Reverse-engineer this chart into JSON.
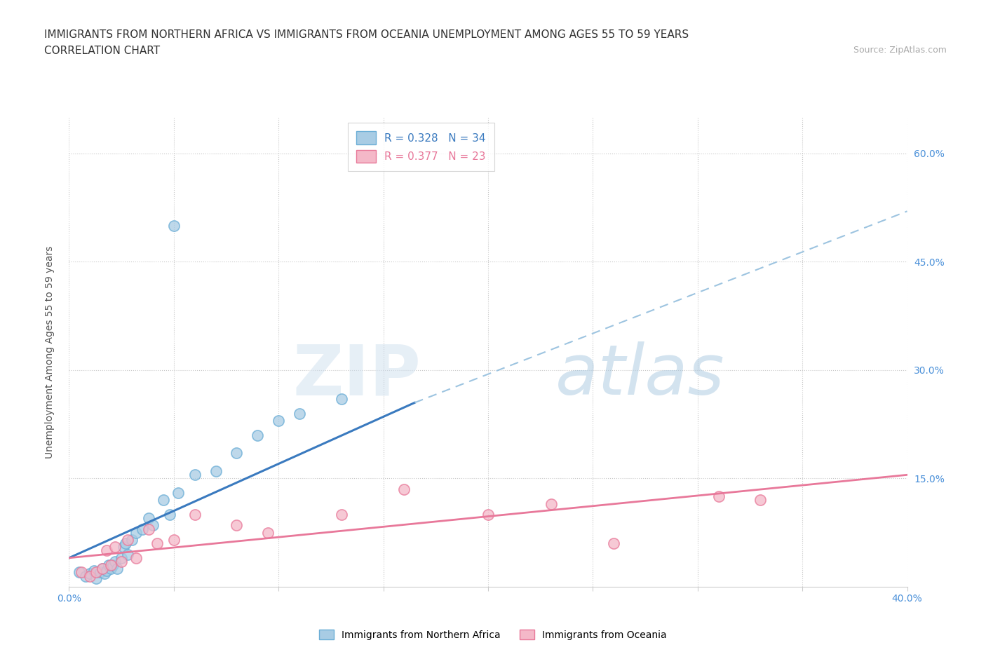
{
  "title_line1": "IMMIGRANTS FROM NORTHERN AFRICA VS IMMIGRANTS FROM OCEANIA UNEMPLOYMENT AMONG AGES 55 TO 59 YEARS",
  "title_line2": "CORRELATION CHART",
  "source_text": "Source: ZipAtlas.com",
  "ylabel": "Unemployment Among Ages 55 to 59 years",
  "xlim": [
    0.0,
    0.4
  ],
  "ylim": [
    0.0,
    0.65
  ],
  "xticks": [
    0.0,
    0.05,
    0.1,
    0.15,
    0.2,
    0.25,
    0.3,
    0.35,
    0.4
  ],
  "yticks_right": [
    0.15,
    0.3,
    0.45,
    0.6
  ],
  "ytick_right_labels": [
    "15.0%",
    "30.0%",
    "45.0%",
    "60.0%"
  ],
  "color_blue": "#a8cce4",
  "color_blue_edge": "#6baed6",
  "color_pink": "#f4b8c8",
  "color_pink_edge": "#e87899",
  "color_trendline_blue_solid": "#3a7abf",
  "color_trendline_blue_dashed": "#9dc4e0",
  "color_trendline_pink": "#e8789a",
  "legend_r1": "R = 0.328",
  "legend_n1": "N = 34",
  "legend_r2": "R = 0.377",
  "legend_n2": "N = 23",
  "watermark_zip": "ZIP",
  "watermark_atlas": "atlas",
  "grid_color": "#c8c8c8",
  "background_color": "#ffffff",
  "title_fontsize": 11,
  "axis_label_fontsize": 10,
  "tick_fontsize": 10,
  "legend_fontsize": 11,
  "scatter_blue_x": [
    0.005,
    0.008,
    0.01,
    0.012,
    0.013,
    0.015,
    0.016,
    0.017,
    0.018,
    0.019,
    0.02,
    0.021,
    0.022,
    0.023,
    0.025,
    0.026,
    0.027,
    0.028,
    0.03,
    0.032,
    0.035,
    0.038,
    0.04,
    0.045,
    0.048,
    0.052,
    0.06,
    0.07,
    0.08,
    0.09,
    0.1,
    0.11,
    0.13,
    0.05
  ],
  "scatter_blue_y": [
    0.02,
    0.015,
    0.018,
    0.022,
    0.012,
    0.02,
    0.025,
    0.018,
    0.022,
    0.03,
    0.025,
    0.03,
    0.035,
    0.025,
    0.04,
    0.055,
    0.06,
    0.045,
    0.065,
    0.075,
    0.08,
    0.095,
    0.085,
    0.12,
    0.1,
    0.13,
    0.155,
    0.16,
    0.185,
    0.21,
    0.23,
    0.24,
    0.26,
    0.5
  ],
  "scatter_pink_x": [
    0.006,
    0.01,
    0.013,
    0.016,
    0.018,
    0.02,
    0.022,
    0.025,
    0.028,
    0.032,
    0.038,
    0.042,
    0.05,
    0.06,
    0.08,
    0.095,
    0.13,
    0.16,
    0.2,
    0.23,
    0.26,
    0.31,
    0.33
  ],
  "scatter_pink_y": [
    0.02,
    0.015,
    0.02,
    0.025,
    0.05,
    0.03,
    0.055,
    0.035,
    0.065,
    0.04,
    0.08,
    0.06,
    0.065,
    0.1,
    0.085,
    0.075,
    0.1,
    0.135,
    0.1,
    0.115,
    0.06,
    0.125,
    0.12
  ],
  "trendline_blue_solid_x1": 0.0,
  "trendline_blue_solid_x2": 0.165,
  "trendline_blue_solid_y1": 0.04,
  "trendline_blue_solid_y2": 0.255,
  "trendline_blue_dashed_x1": 0.165,
  "trendline_blue_dashed_x2": 0.4,
  "trendline_blue_dashed_y1": 0.255,
  "trendline_blue_dashed_y2": 0.52,
  "trendline_pink_x1": 0.0,
  "trendline_pink_x2": 0.4,
  "trendline_pink_y1": 0.04,
  "trendline_pink_y2": 0.155
}
